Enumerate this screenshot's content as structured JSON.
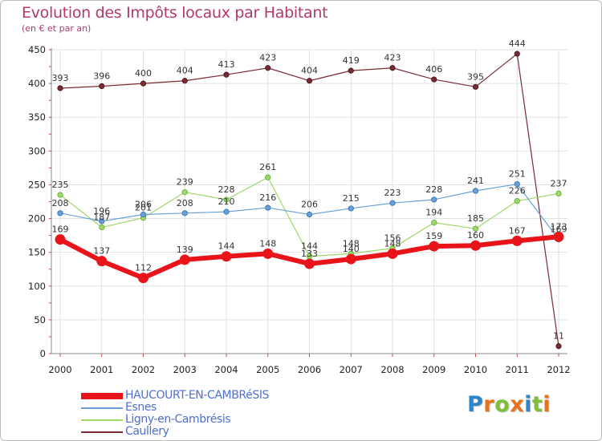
{
  "header": {
    "title": "Evolution des Impôts locaux par Habitant",
    "subtitle": "(en € et par an)"
  },
  "logo": {
    "text": "Proxiti",
    "letter_colors": [
      "#2a86c8",
      "#e8731d",
      "#7fbf3a",
      "#e8731d",
      "#2a86c8",
      "#7fbf3a",
      "#e8731d"
    ]
  },
  "chart_data": {
    "type": "line",
    "x": [
      2000,
      2001,
      2002,
      2003,
      2004,
      2005,
      2006,
      2007,
      2008,
      2009,
      2010,
      2011,
      2012
    ],
    "ylim": [
      0,
      450
    ],
    "yticks": [
      0,
      50,
      100,
      150,
      200,
      250,
      300,
      350,
      400,
      450
    ],
    "grid": true,
    "legend_position": "bottom-left",
    "series": [
      {
        "name": "HAUCOURT-EN-CAMBRéSIS",
        "color": "#e8141a",
        "values": [
          169,
          137,
          112,
          139,
          144,
          148,
          133,
          140,
          148,
          159,
          160,
          167,
          173
        ]
      },
      {
        "name": "Esnes",
        "color": "#6aa0d8",
        "values": [
          208,
          196,
          206,
          208,
          210,
          216,
          206,
          215,
          223,
          228,
          241,
          251,
          169
        ]
      },
      {
        "name": "Ligny-en-Cambrésis",
        "color": "#9ed86a",
        "values": [
          235,
          187,
          201,
          239,
          228,
          261,
          144,
          148,
          156,
          194,
          185,
          226,
          237
        ]
      },
      {
        "name": "Caullery",
        "color": "#7b2b33",
        "values": [
          393,
          396,
          400,
          404,
          413,
          423,
          404,
          419,
          423,
          406,
          395,
          444,
          11
        ]
      }
    ]
  }
}
